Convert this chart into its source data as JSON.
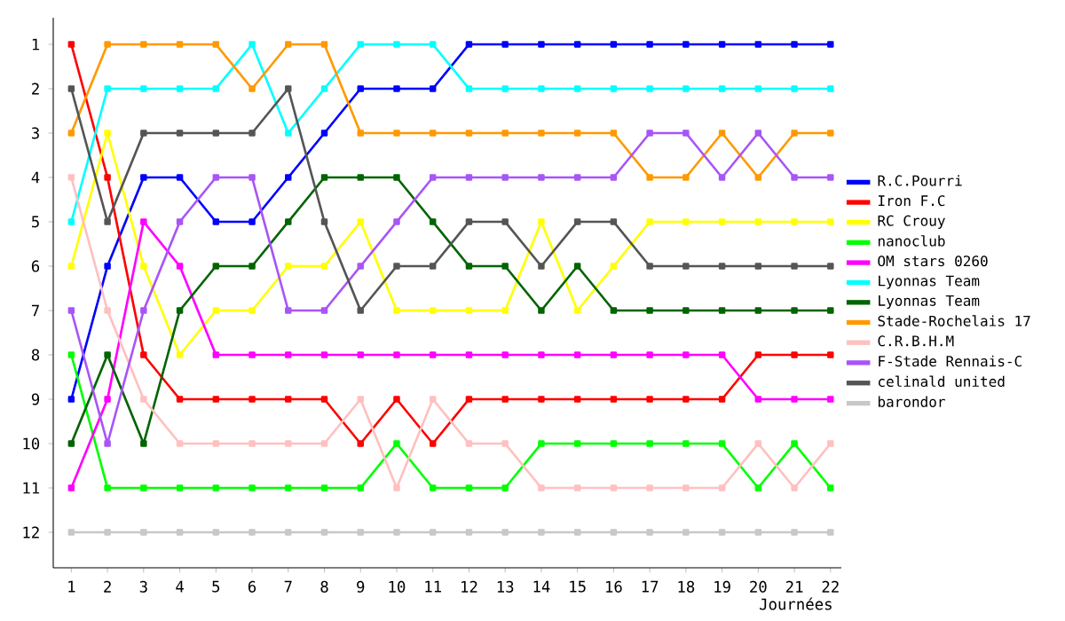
{
  "chart_data": {
    "type": "line",
    "xlabel": "Journées",
    "x": [
      1,
      2,
      3,
      4,
      5,
      6,
      7,
      8,
      9,
      10,
      11,
      12,
      13,
      14,
      15,
      16,
      17,
      18,
      19,
      20,
      21,
      22
    ],
    "xlim": [
      0.5,
      22.3
    ],
    "xticks": [
      1,
      2,
      3,
      4,
      5,
      6,
      7,
      8,
      9,
      10,
      11,
      12,
      13,
      14,
      15,
      16,
      17,
      18,
      19,
      20,
      21,
      22
    ],
    "ylim": [
      12.8,
      0.4
    ],
    "yticks": [
      1,
      2,
      3,
      4,
      5,
      6,
      7,
      8,
      9,
      10,
      11,
      12
    ],
    "grid": false,
    "legend": "right",
    "marker": "square",
    "line_style": "solid",
    "series": [
      {
        "name": "R.C.Pourri",
        "color": "#0000ff",
        "values": [
          9,
          6,
          4,
          4,
          5,
          5,
          4,
          3,
          2,
          2,
          2,
          1,
          1,
          1,
          1,
          1,
          1,
          1,
          1,
          1,
          1,
          1
        ]
      },
      {
        "name": "Iron F.C",
        "color": "#ff0000",
        "values": [
          1,
          4,
          8,
          9,
          9,
          9,
          9,
          9,
          10,
          9,
          10,
          9,
          9,
          9,
          9,
          9,
          9,
          9,
          9,
          8,
          8,
          8
        ]
      },
      {
        "name": "RC Crouy",
        "color": "#ffff00",
        "values": [
          6,
          3,
          6,
          8,
          7,
          7,
          6,
          6,
          5,
          7,
          7,
          7,
          7,
          5,
          7,
          6,
          5,
          5,
          5,
          5,
          5,
          5
        ]
      },
      {
        "name": "nanoclub",
        "color": "#00ff00",
        "values": [
          8,
          11,
          11,
          11,
          11,
          11,
          11,
          11,
          11,
          10,
          11,
          11,
          11,
          10,
          10,
          10,
          10,
          10,
          10,
          11,
          10,
          11
        ]
      },
      {
        "name": "OM stars 0260",
        "color": "#ff00ff",
        "values": [
          11,
          9,
          5,
          6,
          8,
          8,
          8,
          8,
          8,
          8,
          8,
          8,
          8,
          8,
          8,
          8,
          8,
          8,
          8,
          9,
          9,
          9
        ]
      },
      {
        "name": "Lyonnas Team",
        "color": "#00ffff",
        "values": [
          5,
          2,
          2,
          2,
          2,
          1,
          3,
          2,
          1,
          1,
          1,
          2,
          2,
          2,
          2,
          2,
          2,
          2,
          2,
          2,
          2,
          2
        ]
      },
      {
        "name": "Lyonnas Team",
        "color": "#006400",
        "values": [
          10,
          8,
          10,
          7,
          6,
          6,
          5,
          4,
          4,
          4,
          5,
          6,
          6,
          7,
          6,
          7,
          7,
          7,
          7,
          7,
          7,
          7
        ]
      },
      {
        "name": "Stade-Rochelais 17",
        "color": "#ff9900",
        "values": [
          3,
          1,
          1,
          1,
          1,
          2,
          1,
          1,
          3,
          3,
          3,
          3,
          3,
          3,
          3,
          3,
          4,
          4,
          3,
          4,
          3,
          3
        ]
      },
      {
        "name": "C.R.B.H.M",
        "color": "#ffc0c0",
        "values": [
          4,
          7,
          9,
          10,
          10,
          10,
          10,
          10,
          9,
          11,
          9,
          10,
          10,
          11,
          11,
          11,
          11,
          11,
          11,
          10,
          11,
          10
        ]
      },
      {
        "name": "F-Stade Rennais-C",
        "color": "#a855f7",
        "values": [
          7,
          10,
          7,
          5,
          4,
          4,
          7,
          7,
          6,
          5,
          4,
          4,
          4,
          4,
          4,
          4,
          3,
          3,
          4,
          3,
          4,
          4
        ]
      },
      {
        "name": "celinald united",
        "color": "#555555",
        "values": [
          2,
          5,
          3,
          3,
          3,
          3,
          2,
          5,
          7,
          6,
          6,
          5,
          5,
          6,
          5,
          5,
          6,
          6,
          6,
          6,
          6,
          6
        ]
      },
      {
        "name": "barondor",
        "color": "#c8c8c8",
        "values": [
          12,
          12,
          12,
          12,
          12,
          12,
          12,
          12,
          12,
          12,
          12,
          12,
          12,
          12,
          12,
          12,
          12,
          12,
          12,
          12,
          12,
          12
        ]
      }
    ]
  }
}
